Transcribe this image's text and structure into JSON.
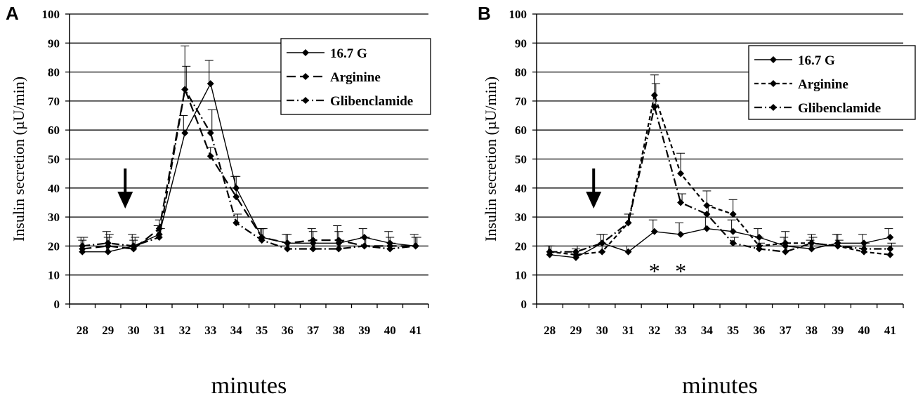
{
  "chart_data": [
    {
      "type": "line",
      "panel_label": "A",
      "xlabel": "minutes",
      "ylabel": "Insulin secretion (µU/min)",
      "ylim": [
        0,
        100
      ],
      "yticks": [
        0,
        10,
        20,
        30,
        40,
        50,
        60,
        70,
        80,
        90,
        100
      ],
      "x": [
        28,
        29,
        30,
        31,
        32,
        33,
        34,
        35,
        36,
        37,
        38,
        39,
        40,
        41
      ],
      "grid": true,
      "legend_position": "top-right",
      "arrow_at_x": 30,
      "annotations": [],
      "series": [
        {
          "name": "16.7 G",
          "style": "solid",
          "values": [
            18,
            18,
            20,
            24,
            59,
            76,
            40,
            23,
            21,
            21,
            21,
            23,
            21,
            20
          ],
          "errors": [
            5,
            7,
            4,
            3,
            6,
            8,
            4,
            3,
            3,
            5,
            6,
            3,
            4,
            4
          ]
        },
        {
          "name": "Arginine",
          "style": "longdash",
          "values": [
            19,
            20,
            19,
            26,
            74,
            51,
            37,
            23,
            21,
            22,
            22,
            20,
            20,
            20
          ],
          "errors": [
            3,
            3,
            3,
            3,
            15,
            3,
            7,
            3,
            3,
            3,
            3,
            3,
            3,
            3
          ]
        },
        {
          "name": "Glibenclamide",
          "style": "dashdot",
          "values": [
            20,
            21,
            20,
            23,
            74,
            59,
            28,
            22,
            19,
            19,
            19,
            20,
            19,
            20
          ],
          "errors": [
            3,
            3,
            3,
            3,
            8,
            8,
            3,
            4,
            2,
            2,
            3,
            3,
            2,
            3
          ]
        }
      ]
    },
    {
      "type": "line",
      "panel_label": "B",
      "xlabel": "minutes",
      "ylabel": "Insulin secretion (µU/min)",
      "ylim": [
        0,
        100
      ],
      "yticks": [
        0,
        10,
        20,
        30,
        40,
        50,
        60,
        70,
        80,
        90,
        100
      ],
      "x": [
        28,
        29,
        30,
        31,
        32,
        33,
        34,
        35,
        36,
        37,
        38,
        39,
        40,
        41
      ],
      "grid": true,
      "legend_position": "top-right",
      "arrow_at_x": 30,
      "annotations": [
        {
          "text": "*",
          "x": 32,
          "y": 14
        },
        {
          "text": "*",
          "x": 33,
          "y": 14
        }
      ],
      "series": [
        {
          "name": "16.7 G",
          "style": "solid",
          "values": [
            17,
            16,
            21,
            18,
            25,
            24,
            26,
            25,
            23,
            20,
            19,
            21,
            21,
            23
          ],
          "errors": [
            3,
            2,
            3,
            2,
            4,
            4,
            4,
            4,
            3,
            3,
            3,
            3,
            3,
            3
          ]
        },
        {
          "name": "Arginine",
          "style": "shortdash",
          "values": [
            18,
            17,
            18,
            28,
            72,
            45,
            34,
            31,
            20,
            21,
            21,
            20,
            18,
            17
          ],
          "errors": [
            2,
            2,
            3,
            3,
            7,
            7,
            5,
            5,
            3,
            4,
            3,
            4,
            3,
            3
          ]
        },
        {
          "name": "Glibenclamide",
          "style": "dashdot",
          "values": [
            18,
            18,
            21,
            28,
            68,
            35,
            31,
            21,
            19,
            18,
            21,
            20,
            19,
            19
          ],
          "errors": [
            2,
            2,
            3,
            3,
            8,
            3,
            3,
            2,
            2,
            2,
            2,
            2,
            2,
            2
          ]
        }
      ]
    }
  ]
}
